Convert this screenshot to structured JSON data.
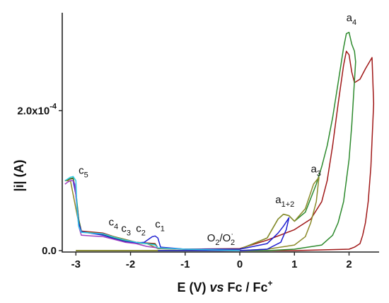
{
  "chart_data": {
    "type": "line",
    "xlabel_parts": [
      "E (V) ",
      "vs",
      " Fc / Fc",
      "+"
    ],
    "ylabel": "|i| (A)",
    "xlim": [
      -3.25,
      2.55
    ],
    "ylim": [
      -2e-06,
      0.00034
    ],
    "x_ticks": [
      -3,
      -2,
      -1,
      0,
      1,
      2
    ],
    "x_tick_labels": [
      "-3",
      "-2",
      "-1",
      "0",
      "1",
      "2"
    ],
    "y_ticks": [
      0,
      0.0002
    ],
    "y_tick_labels": [
      "0.0",
      "2.0x10"
    ],
    "y_tick_exponent": "-4",
    "grid": false,
    "series": [
      {
        "color": "#a01818",
        "x": [
          -3.2,
          -3.12,
          -3.05,
          -3.0,
          -2.95,
          -2.9,
          -2.5,
          -2.3,
          -2.1,
          -1.9,
          -1.7,
          -1.55,
          -1.5,
          -1.0,
          0.0,
          0.5,
          1.0,
          1.3,
          1.5,
          1.6,
          1.7,
          1.8,
          1.9,
          1.95,
          2.0,
          2.05,
          2.1,
          2.2,
          2.3,
          2.42,
          2.45,
          2.4,
          2.35,
          2.3,
          2.25,
          2.2,
          2.1,
          2.0,
          1.0,
          0.0,
          -1.0,
          -2.0,
          -3.0
        ],
        "y": [
          0.0001,
          0.000102,
          0.000103,
          8e-05,
          4.5e-05,
          2.8e-05,
          2.5e-05,
          2e-05,
          1.6e-05,
          1.2e-05,
          1.1e-05,
          1e-05,
          4e-06,
          2e-06,
          3e-06,
          1.5e-05,
          3e-05,
          4.5e-05,
          7e-05,
          0.0001,
          0.00015,
          0.00021,
          0.000265,
          0.000285,
          0.00028,
          0.000255,
          0.00024,
          0.000245,
          0.00026,
          0.000276,
          0.00021,
          0.00012,
          7e-05,
          4e-05,
          2.2e-05,
          1e-05,
          5e-06,
          2e-06,
          0.0,
          0.0,
          0.0,
          0.0,
          0.0
        ]
      },
      {
        "color": "#2d8a2d",
        "x": [
          -3.2,
          -3.1,
          -3.05,
          -3.0,
          -2.95,
          -2.9,
          -2.5,
          -2.3,
          -2.1,
          -1.9,
          -1.7,
          -1.55,
          -1.5,
          -1.0,
          0.0,
          0.5,
          0.7,
          0.8,
          0.9,
          1.0,
          1.2,
          1.4,
          1.5,
          1.6,
          1.7,
          1.8,
          1.9,
          1.95,
          2.0,
          2.05,
          2.1,
          2.12,
          2.05,
          2.0,
          1.9,
          1.8,
          1.7,
          1.5,
          1.0,
          0.5,
          0.0,
          -1.0,
          -2.0,
          -3.0
        ],
        "y": [
          0.0001,
          0.000103,
          0.000104,
          8.5e-05,
          4.5e-05,
          2.7e-05,
          2.3e-05,
          1.8e-05,
          1.4e-05,
          1.1e-05,
          1e-05,
          9e-06,
          3e-06,
          2e-06,
          2e-06,
          1.8e-05,
          4.5e-05,
          5.2e-05,
          5e-05,
          4.2e-05,
          5.5e-05,
          9.5e-05,
          0.00012,
          0.00015,
          0.00019,
          0.00024,
          0.00029,
          0.00031,
          0.000312,
          0.000295,
          0.000285,
          0.00027,
          0.00018,
          0.00013,
          7e-05,
          4e-05,
          2.2e-05,
          8e-06,
          2e-06,
          0.0,
          0.0,
          0.0,
          0.0,
          0.0
        ]
      },
      {
        "color": "#8b8a2a",
        "x": [
          -3.2,
          -3.1,
          -3.0,
          -2.95,
          -2.9,
          -2.5,
          -2.3,
          -2.1,
          -1.9,
          -1.7,
          -1.5,
          -1.0,
          0.0,
          0.5,
          0.7,
          0.8,
          0.9,
          1.0,
          1.2,
          1.35,
          1.45,
          1.4,
          1.3,
          1.2,
          1.0,
          0.5,
          0.0,
          -1.0,
          -2.0,
          -3.0
        ],
        "y": [
          0.0001,
          0.0001,
          6e-05,
          4e-05,
          2.7e-05,
          2.4e-05,
          2e-05,
          1.6e-05,
          1.2e-05,
          1e-05,
          3e-06,
          2e-06,
          2e-06,
          1.8e-05,
          4.5e-05,
          5.2e-05,
          5e-05,
          4.2e-05,
          6e-05,
          9.5e-05,
          0.000105,
          7e-05,
          4e-05,
          2e-05,
          8e-06,
          2e-06,
          0.0,
          0.0,
          0.0,
          0.0
        ]
      },
      {
        "color": "#1f1fd0",
        "x": [
          -3.05,
          -3.0,
          -2.95,
          -2.9,
          -2.5,
          -2.3,
          -2.1,
          -1.9,
          -1.75,
          -1.6,
          -1.55,
          -1.5,
          -1.45,
          -1.0,
          0.0,
          0.5,
          0.7,
          0.8,
          0.9,
          0.85,
          0.75,
          0.5,
          0.0,
          -1.0,
          -1.5
        ],
        "y": [
          0.0001,
          8e-05,
          4e-05,
          2.7e-05,
          2.2e-05,
          1.7e-05,
          1.3e-05,
          1.1e-05,
          1.2e-05,
          2e-05,
          2.1e-05,
          1.8e-05,
          5e-06,
          2e-06,
          2e-06,
          1e-05,
          2.5e-05,
          3.5e-05,
          4.7e-05,
          3e-05,
          1.2e-05,
          2e-06,
          0.0,
          0.0,
          0.0
        ]
      },
      {
        "color": "#a040c0",
        "x": [
          -3.2,
          -3.15,
          -3.1,
          -3.05,
          -3.02,
          -2.98,
          -2.95,
          -2.9,
          -2.5,
          -2.3,
          -2.1,
          -1.9,
          -1.7,
          -1.5,
          -1.0,
          -0.5,
          0.0
        ],
        "y": [
          9.5e-05,
          9.8e-05,
          0.0001,
          0.0001,
          9.5e-05,
          6e-05,
          3.5e-05,
          2.2e-05,
          2e-05,
          1.6e-05,
          1.2e-05,
          1e-05,
          6e-06,
          4e-06,
          2e-06,
          1e-06,
          0.0
        ]
      },
      {
        "color": "#30c8e8",
        "x": [
          -3.2,
          -3.1,
          -3.05,
          -3.0,
          -2.98,
          -2.95,
          -2.9,
          -2.5,
          -2.3,
          -2.1,
          -1.9,
          -1.7,
          -1.55,
          -1.5,
          -1.0,
          0.0
        ],
        "y": [
          0.0001,
          0.000105,
          0.000106,
          0.0001,
          6e-05,
          3.5e-05,
          2.6e-05,
          2.4e-05,
          1.9e-05,
          1.5e-05,
          1.2e-05,
          1e-05,
          8e-06,
          4e-06,
          2e-06,
          0.0
        ]
      }
    ],
    "annotations": [
      {
        "base": "c",
        "sub": "5",
        "x": -2.95,
        "y": 0.00011
      },
      {
        "base": "c",
        "sub": "4",
        "x": -2.4,
        "y": 3.6e-05
      },
      {
        "base": "c",
        "sub": "3",
        "x": -2.17,
        "y": 2.7e-05
      },
      {
        "base": "c",
        "sub": "2",
        "x": -1.9,
        "y": 2.7e-05
      },
      {
        "base": "c",
        "sub": "1",
        "x": -1.55,
        "y": 3.3e-05
      },
      {
        "base": "O",
        "sub": "2",
        "mid": "/O",
        "sup2": "·",
        "sub2": "2",
        "x": -0.6,
        "y": 1.3e-05
      },
      {
        "base": "a",
        "sub": "1+2",
        "x": 0.65,
        "y": 6.8e-05
      },
      {
        "base": "a",
        "sub": "3",
        "x": 1.3,
        "y": 0.000112
      },
      {
        "base": "a",
        "sub": "4",
        "x": 1.95,
        "y": 0.000328
      }
    ]
  }
}
